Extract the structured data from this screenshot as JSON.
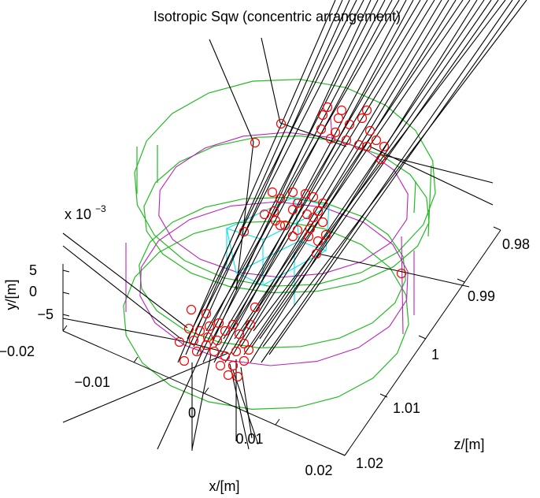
{
  "chart_data": {
    "type": "scatter",
    "projection": "3d",
    "title": "Isotropic Sqw (concentric arrangement)",
    "xlabel": "x/[m]",
    "ylabel": "y/[m]",
    "zlabel": "z/[m]",
    "x_ticks": [
      "−0.02",
      "−0.01",
      "0",
      "0.01",
      "0.02"
    ],
    "y_ticks": [
      "5",
      "0",
      "−5"
    ],
    "y_exponent_base": "x 10",
    "y_exponent_power": "−3",
    "z_ticks": [
      "0.98",
      "0.99",
      "1",
      "1.01",
      "1.02"
    ],
    "xlim": [
      -0.02,
      0.02
    ],
    "ylim": [
      -0.007,
      0.007
    ],
    "zlim": [
      0.975,
      1.025
    ],
    "grid": false,
    "colors": {
      "rays": "#000000",
      "scatter_events": "#ff0000",
      "sample_box": "#00e5ee",
      "outer_container": "#22bb22",
      "inner_container": "#bb22bb"
    }
  }
}
